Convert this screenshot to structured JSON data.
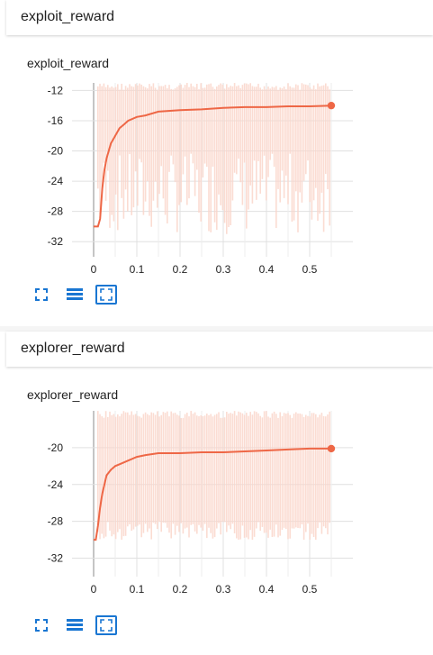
{
  "groups": [
    {
      "title": "exploit_reward",
      "card_title": "exploit_reward",
      "controls": [
        {
          "name": "fullscreen-icon",
          "active": false
        },
        {
          "name": "lines-icon",
          "active": false
        },
        {
          "name": "fit-domain-icon",
          "active": true
        }
      ]
    },
    {
      "title": "explorer_reward",
      "card_title": "explorer_reward",
      "controls": [
        {
          "name": "fullscreen-icon",
          "active": false
        },
        {
          "name": "lines-icon",
          "active": false
        },
        {
          "name": "fit-domain-icon",
          "active": true
        }
      ]
    }
  ],
  "colors": {
    "line": "#ee6746",
    "raw": "#fbd6cb",
    "grid": "#e0e0e0",
    "icon": "#1976d2"
  },
  "chart_data": [
    {
      "type": "line",
      "title": "exploit_reward",
      "xlabel": "",
      "ylabel": "",
      "xlim": [
        -0.05,
        0.6
      ],
      "ylim": [
        -34,
        -11
      ],
      "x_ticks": [
        0,
        0.1,
        0.2,
        0.3,
        0.4,
        0.5
      ],
      "x_tick_labels": [
        "0",
        "0.1",
        "0.2",
        "0.3",
        "0.4",
        "0.5"
      ],
      "y_ticks": [
        -12,
        -16,
        -20,
        -24,
        -28,
        -32
      ],
      "y_tick_labels": [
        "-12",
        "-16",
        "-20",
        "-24",
        "-28",
        "-32"
      ],
      "grid": true,
      "raw_band": {
        "x": [
          0.01,
          0.55
        ],
        "y": [
          -31,
          -11
        ]
      },
      "series": [
        {
          "values_x": [
            0.0,
            0.01,
            0.015,
            0.02,
            0.025,
            0.03,
            0.04,
            0.05,
            0.06,
            0.07,
            0.08,
            0.1,
            0.12,
            0.15,
            0.2,
            0.25,
            0.3,
            0.35,
            0.4,
            0.45,
            0.5,
            0.55
          ],
          "values_y": [
            -30,
            -30,
            -29,
            -25,
            -22.5,
            -21,
            -19,
            -18,
            -17,
            -16.5,
            -16,
            -15.5,
            -15.3,
            -14.8,
            -14.6,
            -14.5,
            -14.3,
            -14.2,
            -14.2,
            -14.1,
            -14.1,
            -14.0
          ]
        }
      ]
    },
    {
      "type": "line",
      "title": "explorer_reward",
      "xlabel": "",
      "ylabel": "",
      "xlim": [
        -0.05,
        0.6
      ],
      "ylim": [
        -34,
        -16
      ],
      "x_ticks": [
        0,
        0.1,
        0.2,
        0.3,
        0.4,
        0.5
      ],
      "x_tick_labels": [
        "0",
        "0.1",
        "0.2",
        "0.3",
        "0.4",
        "0.5"
      ],
      "y_ticks": [
        -20,
        -24,
        -28,
        -32
      ],
      "y_tick_labels": [
        "-20",
        "-24",
        "-28",
        "-32"
      ],
      "grid": true,
      "raw_band": {
        "x": [
          0.01,
          0.55
        ],
        "y": [
          -30,
          -16
        ]
      },
      "series": [
        {
          "values_x": [
            0.0,
            0.005,
            0.01,
            0.015,
            0.02,
            0.03,
            0.04,
            0.05,
            0.06,
            0.08,
            0.1,
            0.12,
            0.15,
            0.2,
            0.25,
            0.3,
            0.35,
            0.4,
            0.45,
            0.5,
            0.55
          ],
          "values_y": [
            -30,
            -30,
            -28.5,
            -26.5,
            -25,
            -23,
            -22.4,
            -22,
            -21.8,
            -21.4,
            -21,
            -20.8,
            -20.6,
            -20.6,
            -20.5,
            -20.5,
            -20.4,
            -20.3,
            -20.2,
            -20.1,
            -20.1
          ]
        }
      ]
    }
  ]
}
